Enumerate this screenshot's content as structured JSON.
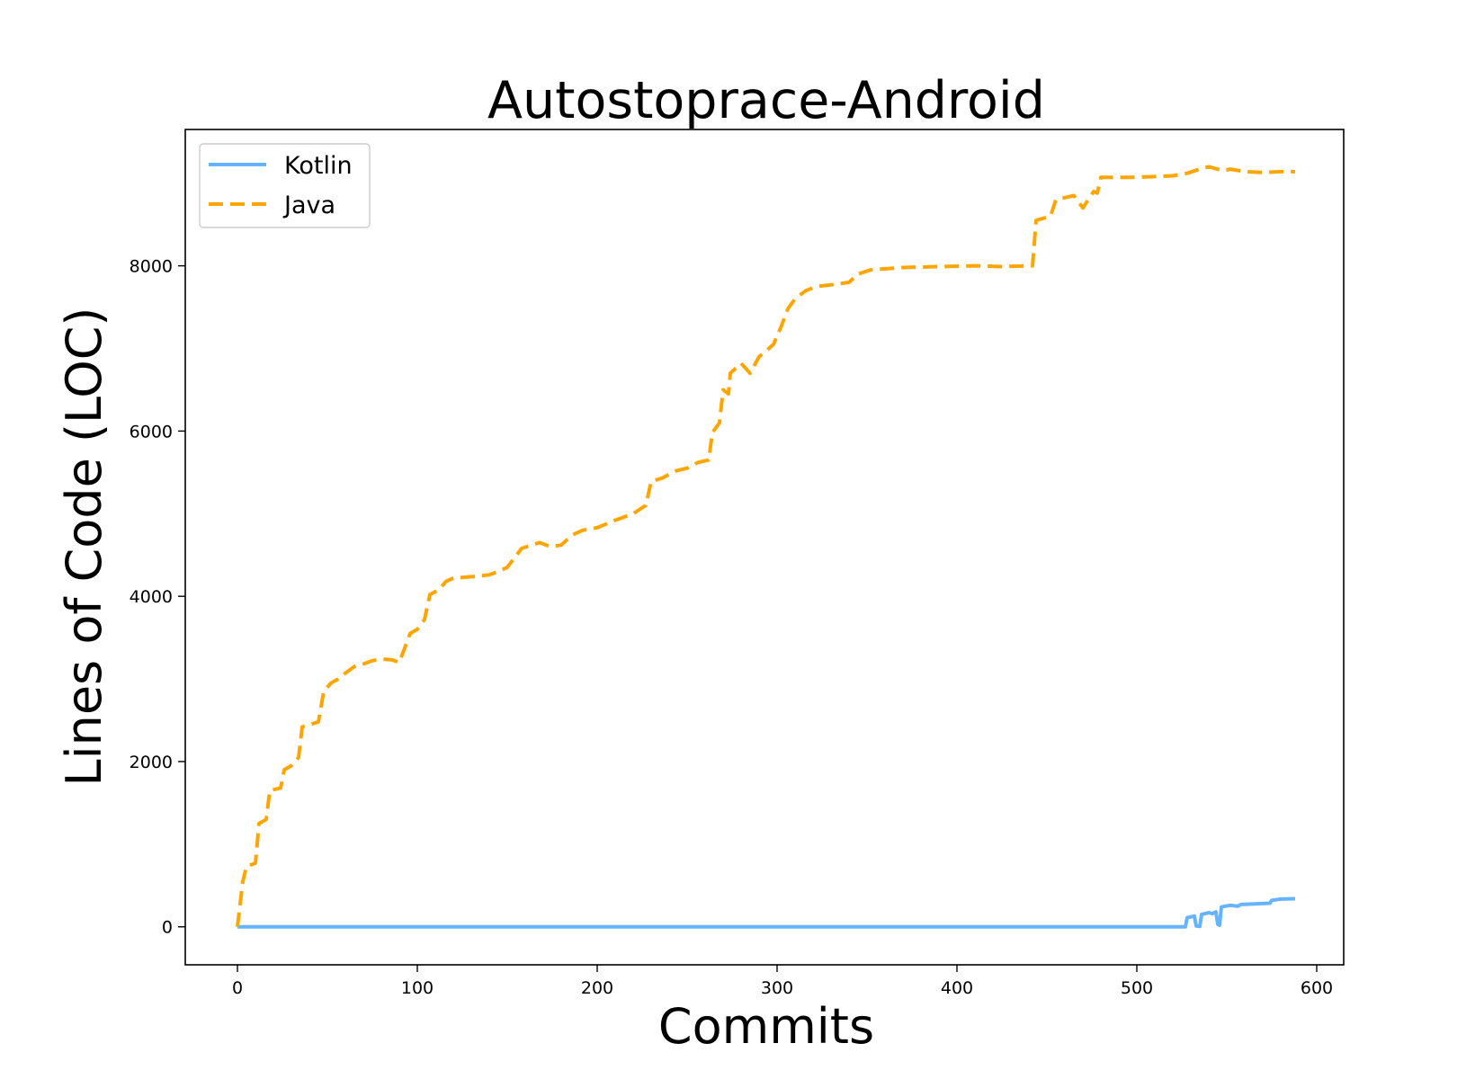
{
  "chart_data": {
    "type": "line",
    "title": "Autostoprace-Android",
    "xlabel": "Commits",
    "ylabel": "Lines of Code (LOC)",
    "xlim": [
      -29,
      615
    ],
    "ylim": [
      -460,
      9650
    ],
    "xticks": [
      0,
      100,
      200,
      300,
      400,
      500,
      600
    ],
    "yticks": [
      0,
      2000,
      4000,
      6000,
      8000
    ],
    "grid": false,
    "legend_position": "top-left",
    "series": [
      {
        "name": "Kotlin",
        "color": "#66b3ff",
        "style": "solid",
        "points": [
          [
            0,
            0
          ],
          [
            527,
            0
          ],
          [
            528,
            110
          ],
          [
            532,
            130
          ],
          [
            533,
            10
          ],
          [
            535,
            5
          ],
          [
            536,
            150
          ],
          [
            540,
            170
          ],
          [
            542,
            160
          ],
          [
            544,
            180
          ],
          [
            545,
            30
          ],
          [
            546,
            20
          ],
          [
            547,
            240
          ],
          [
            552,
            260
          ],
          [
            556,
            250
          ],
          [
            558,
            270
          ],
          [
            568,
            280
          ],
          [
            574,
            285
          ],
          [
            575,
            320
          ],
          [
            580,
            335
          ],
          [
            588,
            340
          ]
        ]
      },
      {
        "name": "Java",
        "color": "#ffa500",
        "style": "dashed",
        "points": [
          [
            0,
            0
          ],
          [
            3,
            550
          ],
          [
            5,
            730
          ],
          [
            10,
            770
          ],
          [
            12,
            1250
          ],
          [
            16,
            1300
          ],
          [
            18,
            1650
          ],
          [
            24,
            1680
          ],
          [
            26,
            1900
          ],
          [
            30,
            1950
          ],
          [
            34,
            2050
          ],
          [
            36,
            2420
          ],
          [
            45,
            2480
          ],
          [
            48,
            2850
          ],
          [
            52,
            2950
          ],
          [
            56,
            3000
          ],
          [
            60,
            3070
          ],
          [
            65,
            3150
          ],
          [
            70,
            3180
          ],
          [
            75,
            3220
          ],
          [
            80,
            3240
          ],
          [
            86,
            3230
          ],
          [
            90,
            3200
          ],
          [
            96,
            3550
          ],
          [
            100,
            3600
          ],
          [
            104,
            3720
          ],
          [
            107,
            4020
          ],
          [
            112,
            4080
          ],
          [
            116,
            4180
          ],
          [
            120,
            4220
          ],
          [
            126,
            4230
          ],
          [
            132,
            4240
          ],
          [
            140,
            4260
          ],
          [
            145,
            4300
          ],
          [
            150,
            4350
          ],
          [
            158,
            4580
          ],
          [
            168,
            4650
          ],
          [
            174,
            4600
          ],
          [
            180,
            4620
          ],
          [
            186,
            4740
          ],
          [
            192,
            4800
          ],
          [
            200,
            4830
          ],
          [
            210,
            4920
          ],
          [
            220,
            5000
          ],
          [
            227,
            5100
          ],
          [
            230,
            5390
          ],
          [
            236,
            5430
          ],
          [
            244,
            5520
          ],
          [
            250,
            5550
          ],
          [
            256,
            5620
          ],
          [
            262,
            5650
          ],
          [
            264,
            5980
          ],
          [
            268,
            6100
          ],
          [
            270,
            6500
          ],
          [
            273,
            6450
          ],
          [
            274,
            6700
          ],
          [
            280,
            6820
          ],
          [
            285,
            6700
          ],
          [
            290,
            6900
          ],
          [
            295,
            6990
          ],
          [
            298,
            7050
          ],
          [
            302,
            7250
          ],
          [
            306,
            7480
          ],
          [
            310,
            7600
          ],
          [
            316,
            7700
          ],
          [
            322,
            7750
          ],
          [
            330,
            7770
          ],
          [
            340,
            7800
          ],
          [
            345,
            7900
          ],
          [
            352,
            7950
          ],
          [
            370,
            7980
          ],
          [
            390,
            7990
          ],
          [
            410,
            8000
          ],
          [
            425,
            7990
          ],
          [
            442,
            8000
          ],
          [
            444,
            8550
          ],
          [
            452,
            8600
          ],
          [
            455,
            8800
          ],
          [
            465,
            8850
          ],
          [
            470,
            8700
          ],
          [
            476,
            8900
          ],
          [
            478,
            8880
          ],
          [
            480,
            9070
          ],
          [
            495,
            9070
          ],
          [
            510,
            9080
          ],
          [
            520,
            9090
          ],
          [
            528,
            9120
          ],
          [
            535,
            9170
          ],
          [
            540,
            9200
          ],
          [
            548,
            9150
          ],
          [
            552,
            9170
          ],
          [
            560,
            9140
          ],
          [
            570,
            9130
          ],
          [
            580,
            9140
          ],
          [
            588,
            9140
          ]
        ]
      }
    ]
  }
}
